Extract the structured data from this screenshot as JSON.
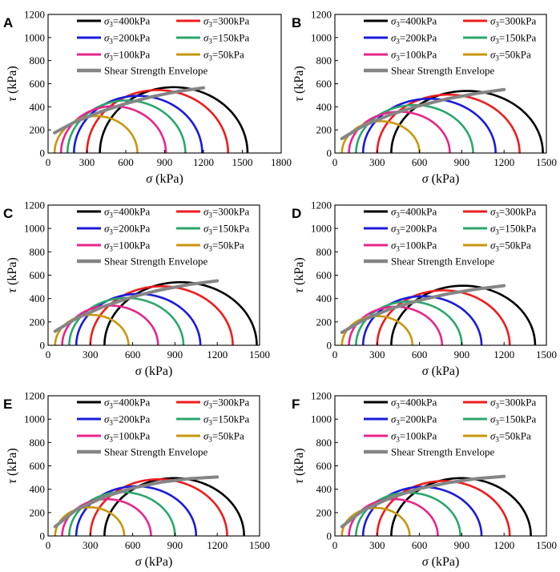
{
  "figure": {
    "background": "#ffffff"
  },
  "chart_data": [
    {
      "panel": "A",
      "type": "line",
      "xlabel_symbol": "σ",
      "xlabel_unit": "(kPa)",
      "ylabel_symbol": "τ",
      "ylabel_unit": "(kPa)",
      "xlim": [
        0,
        1800
      ],
      "ylim": [
        0,
        1200
      ],
      "xticks": [
        "0",
        "300",
        "600",
        "900",
        "1200",
        "1500",
        "1800"
      ],
      "yticks": [
        "0",
        "200",
        "400",
        "600",
        "800",
        "1000",
        "1200"
      ],
      "legend": [
        "σ3=400kPa",
        "σ3=300kPa",
        "σ3=200kPa",
        "σ3=150kPa",
        "σ3=100kPa",
        "σ3=50kPa",
        "Shear Strength Envelope"
      ],
      "circles": [
        {
          "name": "σ3=400kPa",
          "color": "#000000",
          "sigma3": 400,
          "sigma1": 1540
        },
        {
          "name": "σ3=300kPa",
          "color": "#ee1c1c",
          "sigma3": 300,
          "sigma1": 1390
        },
        {
          "name": "σ3=200kPa",
          "color": "#1a1adb",
          "sigma3": 200,
          "sigma1": 1190
        },
        {
          "name": "σ3=150kPa",
          "color": "#2ca66d",
          "sigma3": 150,
          "sigma1": 1060
        },
        {
          "name": "σ3=100kPa",
          "color": "#e8258a",
          "sigma3": 100,
          "sigma1": 910
        },
        {
          "name": "σ3=50kPa",
          "color": "#c9960c",
          "sigma3": 50,
          "sigma1": 690
        }
      ],
      "envelope": {
        "name": "Shear Strength Envelope",
        "color": "#858585",
        "x": [
          50,
          200,
          400,
          600,
          800,
          1000,
          1200
        ],
        "y": [
          175,
          265,
          355,
          428,
          488,
          533,
          565
        ]
      }
    },
    {
      "panel": "B",
      "type": "line",
      "xlabel_symbol": "σ",
      "xlabel_unit": "(kPa)",
      "ylabel_symbol": "τ",
      "ylabel_unit": "(kPa)",
      "xlim": [
        0,
        1500
      ],
      "ylim": [
        0,
        1200
      ],
      "xticks": [
        "0",
        "300",
        "600",
        "900",
        "1200",
        "1500"
      ],
      "yticks": [
        "0",
        "200",
        "400",
        "600",
        "800",
        "1000",
        "1200"
      ],
      "legend": [
        "σ3=400kPa",
        "σ3=300kPa",
        "σ3=200kPa",
        "σ3=150kPa",
        "σ3=100kPa",
        "σ3=50kPa",
        "Shear Strength Envelope"
      ],
      "circles": [
        {
          "name": "σ3=400kPa",
          "color": "#000000",
          "sigma3": 400,
          "sigma1": 1475
        },
        {
          "name": "σ3=300kPa",
          "color": "#ee1c1c",
          "sigma3": 300,
          "sigma1": 1310
        },
        {
          "name": "σ3=200kPa",
          "color": "#1a1adb",
          "sigma3": 200,
          "sigma1": 1140
        },
        {
          "name": "σ3=150kPa",
          "color": "#2ca66d",
          "sigma3": 150,
          "sigma1": 980
        },
        {
          "name": "σ3=100kPa",
          "color": "#e8258a",
          "sigma3": 100,
          "sigma1": 815
        },
        {
          "name": "σ3=50kPa",
          "color": "#c9960c",
          "sigma3": 50,
          "sigma1": 600
        }
      ],
      "envelope": {
        "name": "Shear Strength Envelope",
        "color": "#858585",
        "x": [
          50,
          200,
          400,
          600,
          800,
          1000,
          1200
        ],
        "y": [
          125,
          235,
          335,
          410,
          470,
          515,
          550
        ]
      }
    },
    {
      "panel": "C",
      "type": "line",
      "xlabel_symbol": "σ",
      "xlabel_unit": "(kPa)",
      "ylabel_symbol": "τ",
      "ylabel_unit": "(kPa)",
      "xlim": [
        0,
        1500
      ],
      "ylim": [
        0,
        1200
      ],
      "xticks": [
        "0",
        "300",
        "600",
        "900",
        "1200",
        "1500"
      ],
      "yticks": [
        "0",
        "200",
        "400",
        "600",
        "800",
        "1000",
        "1200"
      ],
      "legend": [
        "σ3=400kPa",
        "σ3=300kPa",
        "σ3=200kPa",
        "σ3=150kPa",
        "σ3=100kPa",
        "σ3=50kPa",
        "Shear Strength Envelope"
      ],
      "circles": [
        {
          "name": "σ3=400kPa",
          "color": "#000000",
          "sigma3": 400,
          "sigma1": 1480
        },
        {
          "name": "σ3=300kPa",
          "color": "#ee1c1c",
          "sigma3": 300,
          "sigma1": 1310
        },
        {
          "name": "σ3=200kPa",
          "color": "#1a1adb",
          "sigma3": 200,
          "sigma1": 1080
        },
        {
          "name": "σ3=150kPa",
          "color": "#2ca66d",
          "sigma3": 150,
          "sigma1": 960
        },
        {
          "name": "σ3=100kPa",
          "color": "#e8258a",
          "sigma3": 100,
          "sigma1": 780
        },
        {
          "name": "σ3=50kPa",
          "color": "#c9960c",
          "sigma3": 50,
          "sigma1": 570
        }
      ],
      "envelope": {
        "name": "Shear Strength Envelope",
        "color": "#858585",
        "x": [
          50,
          200,
          400,
          600,
          800,
          1000,
          1200
        ],
        "y": [
          120,
          230,
          335,
          415,
          475,
          520,
          552
        ]
      }
    },
    {
      "panel": "D",
      "type": "line",
      "xlabel_symbol": "σ",
      "xlabel_unit": "(kPa)",
      "ylabel_symbol": "τ",
      "ylabel_unit": "(kPa)",
      "xlim": [
        0,
        1500
      ],
      "ylim": [
        0,
        1200
      ],
      "xticks": [
        "0",
        "300",
        "600",
        "900",
        "1200",
        "1500"
      ],
      "yticks": [
        "0",
        "200",
        "400",
        "600",
        "800",
        "1000",
        "1200"
      ],
      "legend": [
        "σ3=400kPa",
        "σ3=300kPa",
        "σ3=200kPa",
        "σ3=150kPa",
        "σ3=100kPa",
        "σ3=50kPa",
        "Shear Strength Envelope"
      ],
      "circles": [
        {
          "name": "σ3=400kPa",
          "color": "#000000",
          "sigma3": 400,
          "sigma1": 1420
        },
        {
          "name": "σ3=300kPa",
          "color": "#ee1c1c",
          "sigma3": 300,
          "sigma1": 1240
        },
        {
          "name": "σ3=200kPa",
          "color": "#1a1adb",
          "sigma3": 200,
          "sigma1": 1040
        },
        {
          "name": "σ3=150kPa",
          "color": "#2ca66d",
          "sigma3": 150,
          "sigma1": 900
        },
        {
          "name": "σ3=100kPa",
          "color": "#e8258a",
          "sigma3": 100,
          "sigma1": 760
        },
        {
          "name": "σ3=50kPa",
          "color": "#c9960c",
          "sigma3": 50,
          "sigma1": 550
        }
      ],
      "envelope": {
        "name": "Shear Strength Envelope",
        "color": "#858585",
        "x": [
          50,
          200,
          400,
          600,
          800,
          1000,
          1200
        ],
        "y": [
          110,
          215,
          315,
          385,
          440,
          480,
          510
        ]
      }
    },
    {
      "panel": "E",
      "type": "line",
      "xlabel_symbol": "σ",
      "xlabel_unit": "(kPa)",
      "ylabel_symbol": "τ",
      "ylabel_unit": "(kPa)",
      "xlim": [
        0,
        1500
      ],
      "ylim": [
        0,
        1200
      ],
      "xticks": [
        "0",
        "300",
        "600",
        "900",
        "1200",
        "1500"
      ],
      "yticks": [
        "0",
        "200",
        "400",
        "600",
        "800",
        "1000",
        "1200"
      ],
      "legend": [
        "σ3=400kPa",
        "σ3=300kPa",
        "σ3=200kPa",
        "σ3=150kPa",
        "σ3=100kPa",
        "σ3=50kPa",
        "Shear Strength Envelope"
      ],
      "circles": [
        {
          "name": "σ3=400kPa",
          "color": "#000000",
          "sigma3": 400,
          "sigma1": 1390
        },
        {
          "name": "σ3=300kPa",
          "color": "#ee1c1c",
          "sigma3": 300,
          "sigma1": 1270
        },
        {
          "name": "σ3=200kPa",
          "color": "#1a1adb",
          "sigma3": 200,
          "sigma1": 1050
        },
        {
          "name": "σ3=150kPa",
          "color": "#2ca66d",
          "sigma3": 150,
          "sigma1": 900
        },
        {
          "name": "σ3=100kPa",
          "color": "#e8258a",
          "sigma3": 100,
          "sigma1": 730
        },
        {
          "name": "σ3=50kPa",
          "color": "#c9960c",
          "sigma3": 50,
          "sigma1": 540
        }
      ],
      "envelope": {
        "name": "Shear Strength Envelope",
        "color": "#858585",
        "x": [
          50,
          200,
          400,
          600,
          800,
          1000,
          1200
        ],
        "y": [
          80,
          225,
          335,
          410,
          460,
          490,
          505
        ]
      }
    },
    {
      "panel": "F",
      "type": "line",
      "xlabel_symbol": "σ",
      "xlabel_unit": "(kPa)",
      "ylabel_symbol": "τ",
      "ylabel_unit": "(kPa)",
      "xlim": [
        0,
        1500
      ],
      "ylim": [
        0,
        1200
      ],
      "xticks": [
        "0",
        "300",
        "600",
        "900",
        "1200",
        "1500"
      ],
      "yticks": [
        "0",
        "200",
        "400",
        "600",
        "800",
        "1000",
        "1200"
      ],
      "legend": [
        "σ3=400kPa",
        "σ3=300kPa",
        "σ3=200kPa",
        "σ3=150kPa",
        "σ3=100kPa",
        "σ3=50kPa",
        "Shear Strength Envelope"
      ],
      "circles": [
        {
          "name": "σ3=400kPa",
          "color": "#000000",
          "sigma3": 400,
          "sigma1": 1390
        },
        {
          "name": "σ3=300kPa",
          "color": "#ee1c1c",
          "sigma3": 300,
          "sigma1": 1240
        },
        {
          "name": "σ3=200kPa",
          "color": "#1a1adb",
          "sigma3": 200,
          "sigma1": 1040
        },
        {
          "name": "σ3=150kPa",
          "color": "#2ca66d",
          "sigma3": 150,
          "sigma1": 890
        },
        {
          "name": "σ3=100kPa",
          "color": "#e8258a",
          "sigma3": 100,
          "sigma1": 730
        },
        {
          "name": "σ3=50kPa",
          "color": "#c9960c",
          "sigma3": 50,
          "sigma1": 530
        }
      ],
      "envelope": {
        "name": "Shear Strength Envelope",
        "color": "#858585",
        "x": [
          50,
          200,
          400,
          600,
          800,
          1000,
          1200
        ],
        "y": [
          80,
          220,
          330,
          405,
          455,
          490,
          510
        ]
      }
    }
  ]
}
